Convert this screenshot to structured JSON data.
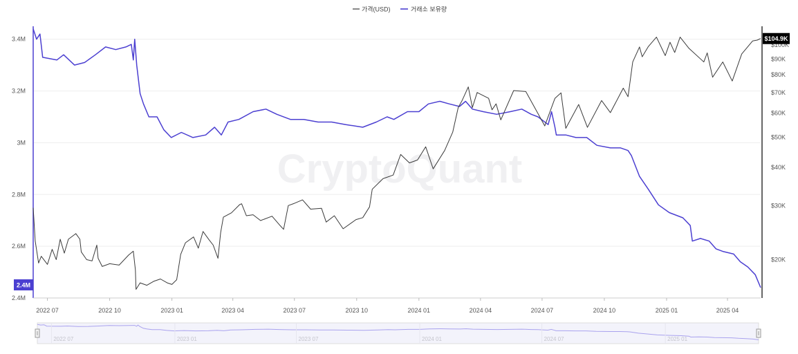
{
  "legend": {
    "price_label": "가격(USD)",
    "reserve_label": "거래소 보유량"
  },
  "watermark": "CryptoQuant",
  "colors": {
    "price": "#3a3a3a",
    "reserve": "#4b3fd1",
    "grid": "#eeeeee",
    "axis_text": "#555555",
    "badge_left_bg": "#4b3fd1",
    "badge_right_bg": "#000000"
  },
  "navigator": {
    "labels": [
      "2022 07",
      "2023 01",
      "2023 07",
      "2024 01",
      "2024 07",
      "2025 01"
    ]
  },
  "chart_data": {
    "type": "line",
    "x_axis": {
      "tick_labels": [
        "2022 07",
        "2022 10",
        "2023 01",
        "2023 04",
        "2023 07",
        "2023 10",
        "2024 01",
        "2024 04",
        "2024 07",
        "2024 10",
        "2025 01",
        "2025 04"
      ],
      "tick_dates": [
        "2022-07-01",
        "2022-10-01",
        "2023-01-01",
        "2023-04-01",
        "2023-07-01",
        "2023-10-01",
        "2024-01-01",
        "2024-04-01",
        "2024-07-01",
        "2024-10-01",
        "2025-01-01",
        "2025-04-01"
      ],
      "range": [
        "2022-06-10",
        "2025-05-20"
      ]
    },
    "left_axis": {
      "tick_labels": [
        "3.4M",
        "3.2M",
        "3M",
        "2.8M",
        "2.6M",
        "2.4M"
      ],
      "ticks": [
        3400000,
        3200000,
        3000000,
        2800000,
        2600000,
        2400000
      ],
      "range": [
        2400000,
        3450000
      ],
      "current_badge": "2.4M"
    },
    "right_axis": {
      "scale": "log",
      "tick_labels": [
        "$100K",
        "$90K",
        "$80K",
        "$70K",
        "$60K",
        "$50K",
        "$40K",
        "$30K",
        "$20K"
      ],
      "ticks": [
        100000,
        90000,
        80000,
        70000,
        60000,
        50000,
        40000,
        30000,
        20000
      ],
      "range": [
        15000,
        115000
      ],
      "current_badge": "$104.9K"
    },
    "grid": true,
    "legend_position": "top-center",
    "series": [
      {
        "name": "가격(USD)",
        "axis": "right",
        "points": [
          [
            "2022-06-10",
            29500
          ],
          [
            "2022-06-13",
            23000
          ],
          [
            "2022-06-18",
            19500
          ],
          [
            "2022-06-22",
            20500
          ],
          [
            "2022-07-01",
            19300
          ],
          [
            "2022-07-08",
            21600
          ],
          [
            "2022-07-14",
            20000
          ],
          [
            "2022-07-20",
            23300
          ],
          [
            "2022-07-26",
            21000
          ],
          [
            "2022-08-01",
            23300
          ],
          [
            "2022-08-12",
            24300
          ],
          [
            "2022-08-18",
            23300
          ],
          [
            "2022-08-20",
            21200
          ],
          [
            "2022-08-28",
            20000
          ],
          [
            "2022-09-05",
            19800
          ],
          [
            "2022-09-12",
            22300
          ],
          [
            "2022-09-14",
            20200
          ],
          [
            "2022-09-20",
            19000
          ],
          [
            "2022-10-01",
            19400
          ],
          [
            "2022-10-15",
            19200
          ],
          [
            "2022-10-29",
            20700
          ],
          [
            "2022-11-05",
            21300
          ],
          [
            "2022-11-08",
            18500
          ],
          [
            "2022-11-09",
            16000
          ],
          [
            "2022-11-15",
            16800
          ],
          [
            "2022-11-25",
            16500
          ],
          [
            "2022-12-05",
            17000
          ],
          [
            "2022-12-15",
            17300
          ],
          [
            "2022-12-25",
            16800
          ],
          [
            "2023-01-01",
            16600
          ],
          [
            "2023-01-08",
            17200
          ],
          [
            "2023-01-14",
            20800
          ],
          [
            "2023-01-21",
            22700
          ],
          [
            "2023-02-02",
            23700
          ],
          [
            "2023-02-09",
            21800
          ],
          [
            "2023-02-16",
            24700
          ],
          [
            "2023-02-25",
            23200
          ],
          [
            "2023-03-03",
            22300
          ],
          [
            "2023-03-10",
            20200
          ],
          [
            "2023-03-14",
            24500
          ],
          [
            "2023-03-18",
            27500
          ],
          [
            "2023-03-30",
            28400
          ],
          [
            "2023-04-11",
            30200
          ],
          [
            "2023-04-14",
            30400
          ],
          [
            "2023-04-21",
            27800
          ],
          [
            "2023-05-01",
            28000
          ],
          [
            "2023-05-12",
            26800
          ],
          [
            "2023-05-29",
            27700
          ],
          [
            "2023-06-10",
            25800
          ],
          [
            "2023-06-15",
            25100
          ],
          [
            "2023-06-22",
            30000
          ],
          [
            "2023-07-01",
            30500
          ],
          [
            "2023-07-13",
            31300
          ],
          [
            "2023-07-25",
            29200
          ],
          [
            "2023-08-10",
            29400
          ],
          [
            "2023-08-17",
            26500
          ],
          [
            "2023-08-29",
            27800
          ],
          [
            "2023-09-11",
            25200
          ],
          [
            "2023-09-30",
            27000
          ],
          [
            "2023-10-10",
            27400
          ],
          [
            "2023-10-20",
            29700
          ],
          [
            "2023-10-24",
            33900
          ],
          [
            "2023-11-09",
            36700
          ],
          [
            "2023-11-24",
            37700
          ],
          [
            "2023-12-05",
            44000
          ],
          [
            "2023-12-18",
            41300
          ],
          [
            "2023-12-30",
            42200
          ],
          [
            "2024-01-11",
            46600
          ],
          [
            "2024-01-22",
            39500
          ],
          [
            "2024-02-08",
            45300
          ],
          [
            "2024-02-20",
            52000
          ],
          [
            "2024-02-28",
            62500
          ],
          [
            "2024-03-05",
            66000
          ],
          [
            "2024-03-14",
            73000
          ],
          [
            "2024-03-20",
            62500
          ],
          [
            "2024-03-27",
            70000
          ],
          [
            "2024-04-13",
            67000
          ],
          [
            "2024-04-18",
            61500
          ],
          [
            "2024-04-24",
            64300
          ],
          [
            "2024-05-01",
            57000
          ],
          [
            "2024-05-20",
            71000
          ],
          [
            "2024-06-07",
            70500
          ],
          [
            "2024-06-24",
            60300
          ],
          [
            "2024-07-05",
            54500
          ],
          [
            "2024-07-20",
            67000
          ],
          [
            "2024-07-29",
            69800
          ],
          [
            "2024-08-05",
            53500
          ],
          [
            "2024-08-24",
            64000
          ],
          [
            "2024-09-06",
            53900
          ],
          [
            "2024-09-27",
            65900
          ],
          [
            "2024-10-10",
            60200
          ],
          [
            "2024-10-29",
            72300
          ],
          [
            "2024-11-05",
            67800
          ],
          [
            "2024-11-12",
            88000
          ],
          [
            "2024-11-22",
            98500
          ],
          [
            "2024-11-26",
            91500
          ],
          [
            "2024-12-05",
            98800
          ],
          [
            "2024-12-17",
            106000
          ],
          [
            "2024-12-30",
            92300
          ],
          [
            "2025-01-06",
            102000
          ],
          [
            "2025-01-13",
            94500
          ],
          [
            "2025-01-21",
            106000
          ],
          [
            "2025-02-03",
            97500
          ],
          [
            "2025-02-25",
            88000
          ],
          [
            "2025-03-02",
            94200
          ],
          [
            "2025-03-10",
            78500
          ],
          [
            "2025-03-25",
            88000
          ],
          [
            "2025-04-08",
            76300
          ],
          [
            "2025-04-22",
            93400
          ],
          [
            "2025-05-08",
            103000
          ],
          [
            "2025-05-15",
            103700
          ],
          [
            "2025-05-20",
            104900
          ]
        ]
      },
      {
        "name": "거래소 보유량",
        "axis": "left",
        "points": [
          [
            "2022-06-10",
            3440000
          ],
          [
            "2022-06-15",
            3400000
          ],
          [
            "2022-06-20",
            3420000
          ],
          [
            "2022-06-24",
            3330000
          ],
          [
            "2022-07-15",
            3320000
          ],
          [
            "2022-07-25",
            3340000
          ],
          [
            "2022-08-10",
            3300000
          ],
          [
            "2022-08-25",
            3310000
          ],
          [
            "2022-09-10",
            3340000
          ],
          [
            "2022-09-25",
            3370000
          ],
          [
            "2022-10-10",
            3360000
          ],
          [
            "2022-10-25",
            3370000
          ],
          [
            "2022-11-02",
            3380000
          ],
          [
            "2022-11-05",
            3320000
          ],
          [
            "2022-11-07",
            3400000
          ],
          [
            "2022-11-10",
            3300000
          ],
          [
            "2022-11-15",
            3190000
          ],
          [
            "2022-11-20",
            3150000
          ],
          [
            "2022-11-28",
            3100000
          ],
          [
            "2022-12-10",
            3100000
          ],
          [
            "2022-12-20",
            3050000
          ],
          [
            "2022-12-31",
            3020000
          ],
          [
            "2023-01-15",
            3040000
          ],
          [
            "2023-02-01",
            3020000
          ],
          [
            "2023-02-20",
            3030000
          ],
          [
            "2023-03-05",
            3060000
          ],
          [
            "2023-03-15",
            3030000
          ],
          [
            "2023-03-25",
            3080000
          ],
          [
            "2023-04-10",
            3090000
          ],
          [
            "2023-05-01",
            3120000
          ],
          [
            "2023-05-20",
            3130000
          ],
          [
            "2023-06-05",
            3110000
          ],
          [
            "2023-06-25",
            3090000
          ],
          [
            "2023-07-15",
            3090000
          ],
          [
            "2023-08-05",
            3080000
          ],
          [
            "2023-08-25",
            3080000
          ],
          [
            "2023-09-15",
            3070000
          ],
          [
            "2023-10-10",
            3060000
          ],
          [
            "2023-10-30",
            3080000
          ],
          [
            "2023-11-15",
            3100000
          ],
          [
            "2023-11-25",
            3090000
          ],
          [
            "2023-12-15",
            3120000
          ],
          [
            "2024-01-01",
            3120000
          ],
          [
            "2024-01-15",
            3150000
          ],
          [
            "2024-02-01",
            3160000
          ],
          [
            "2024-02-15",
            3150000
          ],
          [
            "2024-03-01",
            3140000
          ],
          [
            "2024-03-10",
            3160000
          ],
          [
            "2024-03-20",
            3130000
          ],
          [
            "2024-04-05",
            3120000
          ],
          [
            "2024-04-25",
            3110000
          ],
          [
            "2024-05-15",
            3120000
          ],
          [
            "2024-06-01",
            3130000
          ],
          [
            "2024-06-15",
            3110000
          ],
          [
            "2024-06-25",
            3100000
          ],
          [
            "2024-07-10",
            3070000
          ],
          [
            "2024-07-15",
            3120000
          ],
          [
            "2024-07-20",
            3060000
          ],
          [
            "2024-07-22",
            3030000
          ],
          [
            "2024-08-05",
            3030000
          ],
          [
            "2024-08-20",
            3020000
          ],
          [
            "2024-09-05",
            3020000
          ],
          [
            "2024-09-20",
            2990000
          ],
          [
            "2024-10-10",
            2980000
          ],
          [
            "2024-10-25",
            2980000
          ],
          [
            "2024-11-05",
            2970000
          ],
          [
            "2024-11-10",
            2950000
          ],
          [
            "2024-11-22",
            2870000
          ],
          [
            "2024-12-05",
            2820000
          ],
          [
            "2024-12-20",
            2760000
          ],
          [
            "2025-01-05",
            2730000
          ],
          [
            "2025-01-25",
            2710000
          ],
          [
            "2025-02-05",
            2680000
          ],
          [
            "2025-02-08",
            2620000
          ],
          [
            "2025-02-20",
            2630000
          ],
          [
            "2025-03-05",
            2620000
          ],
          [
            "2025-03-15",
            2590000
          ],
          [
            "2025-03-25",
            2580000
          ],
          [
            "2025-04-10",
            2570000
          ],
          [
            "2025-04-20",
            2540000
          ],
          [
            "2025-05-01",
            2520000
          ],
          [
            "2025-05-12",
            2490000
          ],
          [
            "2025-05-20",
            2440000
          ]
        ]
      }
    ]
  }
}
